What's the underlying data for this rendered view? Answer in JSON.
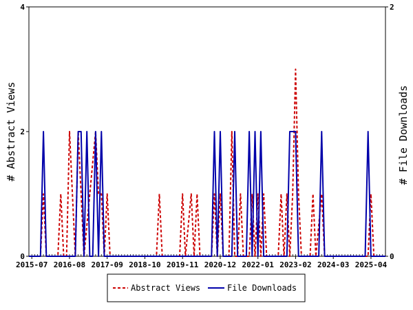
{
  "chart_data": {
    "type": "line",
    "ylabel_left": "# Abstract Views",
    "ylabel_right": "# File Downloads",
    "ylim_left": [
      0,
      4
    ],
    "ylim_right": [
      0,
      2
    ],
    "left_ticks": [
      "0",
      "2",
      "4"
    ],
    "right_ticks": [
      "0",
      "2"
    ],
    "grid": false,
    "legend_position": "bottom",
    "x_tick_labels": [
      "2015-07",
      "2016-08",
      "2017-09",
      "2018-10",
      "2019-11",
      "2020-12",
      "2022-01",
      "2023-02",
      "2024-03",
      "2025-04"
    ],
    "x_tick_months": [
      "2015-07",
      "2016-08",
      "2017-09",
      "2018-10",
      "2019-11",
      "2020-12",
      "2022-01",
      "2023-02",
      "2024-03",
      "2025-04"
    ],
    "x_range": [
      "2015-06",
      "2025-09"
    ],
    "series": [
      {
        "name": "Abstract Views",
        "axis": "left",
        "color": "#cc0000",
        "style": "dashed",
        "points": [
          [
            "2015-06",
            0
          ],
          [
            "2015-10",
            0
          ],
          [
            "2015-11",
            1
          ],
          [
            "2015-12",
            0
          ],
          [
            "2016-04",
            0
          ],
          [
            "2016-05",
            1
          ],
          [
            "2016-06",
            0
          ],
          [
            "2016-07",
            0
          ],
          [
            "2016-08",
            2
          ],
          [
            "2016-09",
            1
          ],
          [
            "2016-10",
            0
          ],
          [
            "2016-11",
            2
          ],
          [
            "2016-12",
            1
          ],
          [
            "2017-01",
            0
          ],
          [
            "2017-05",
            2
          ],
          [
            "2017-06",
            1
          ],
          [
            "2017-07",
            1
          ],
          [
            "2017-08",
            0
          ],
          [
            "2017-09",
            1
          ],
          [
            "2017-10",
            0
          ],
          [
            "2019-02",
            0
          ],
          [
            "2019-03",
            1
          ],
          [
            "2019-04",
            0
          ],
          [
            "2019-10",
            0
          ],
          [
            "2019-11",
            1
          ],
          [
            "2019-12",
            0
          ],
          [
            "2020-02",
            1
          ],
          [
            "2020-03",
            0
          ],
          [
            "2020-04",
            1
          ],
          [
            "2020-05",
            0
          ],
          [
            "2020-09",
            0
          ],
          [
            "2020-10",
            1
          ],
          [
            "2020-11",
            0
          ],
          [
            "2020-12",
            1
          ],
          [
            "2021-01",
            0
          ],
          [
            "2021-03",
            0
          ],
          [
            "2021-04",
            2
          ],
          [
            "2021-05",
            0
          ],
          [
            "2021-06",
            0
          ],
          [
            "2021-07",
            1
          ],
          [
            "2021-08",
            0
          ],
          [
            "2021-10",
            0
          ],
          [
            "2021-11",
            1
          ],
          [
            "2021-12",
            0
          ],
          [
            "2022-01",
            1
          ],
          [
            "2022-02",
            0
          ],
          [
            "2022-03",
            1
          ],
          [
            "2022-04",
            0
          ],
          [
            "2022-08",
            0
          ],
          [
            "2022-09",
            1
          ],
          [
            "2022-10",
            0
          ],
          [
            "2022-11",
            1
          ],
          [
            "2022-12",
            0
          ],
          [
            "2023-01",
            1
          ],
          [
            "2023-02",
            3
          ],
          [
            "2023-03",
            1
          ],
          [
            "2023-04",
            0
          ],
          [
            "2023-07",
            0
          ],
          [
            "2023-08",
            1
          ],
          [
            "2023-09",
            0
          ],
          [
            "2023-11",
            1
          ],
          [
            "2023-12",
            0
          ],
          [
            "2025-03",
            0
          ],
          [
            "2025-04",
            1
          ],
          [
            "2025-05",
            0
          ],
          [
            "2025-09",
            0
          ]
        ]
      },
      {
        "name": "File Downloads",
        "axis": "right",
        "color": "#0000aa",
        "style": "solid",
        "points": [
          [
            "2015-06",
            0
          ],
          [
            "2015-10",
            0
          ],
          [
            "2015-11",
            1
          ],
          [
            "2015-12",
            0
          ],
          [
            "2016-10",
            0
          ],
          [
            "2016-11",
            1
          ],
          [
            "2016-12",
            1
          ],
          [
            "2017-01",
            0
          ],
          [
            "2017-02",
            1
          ],
          [
            "2017-03",
            0
          ],
          [
            "2017-04",
            0
          ],
          [
            "2017-05",
            1
          ],
          [
            "2017-06",
            0
          ],
          [
            "2017-07",
            1
          ],
          [
            "2017-08",
            0
          ],
          [
            "2017-09",
            0
          ],
          [
            "2020-09",
            0
          ],
          [
            "2020-10",
            1
          ],
          [
            "2020-11",
            0
          ],
          [
            "2020-12",
            1
          ],
          [
            "2021-01",
            0
          ],
          [
            "2021-04",
            0
          ],
          [
            "2021-05",
            1
          ],
          [
            "2021-06",
            0
          ],
          [
            "2021-09",
            0
          ],
          [
            "2021-10",
            1
          ],
          [
            "2021-11",
            0
          ],
          [
            "2021-12",
            1
          ],
          [
            "2022-01",
            0
          ],
          [
            "2022-02",
            1
          ],
          [
            "2022-03",
            0
          ],
          [
            "2022-11",
            0
          ],
          [
            "2022-12",
            1
          ],
          [
            "2023-01",
            1
          ],
          [
            "2023-02",
            1
          ],
          [
            "2023-03",
            0
          ],
          [
            "2023-10",
            0
          ],
          [
            "2023-11",
            1
          ],
          [
            "2023-12",
            0
          ],
          [
            "2025-02",
            0
          ],
          [
            "2025-03",
            1
          ],
          [
            "2025-04",
            0
          ],
          [
            "2025-09",
            0
          ]
        ]
      }
    ]
  }
}
